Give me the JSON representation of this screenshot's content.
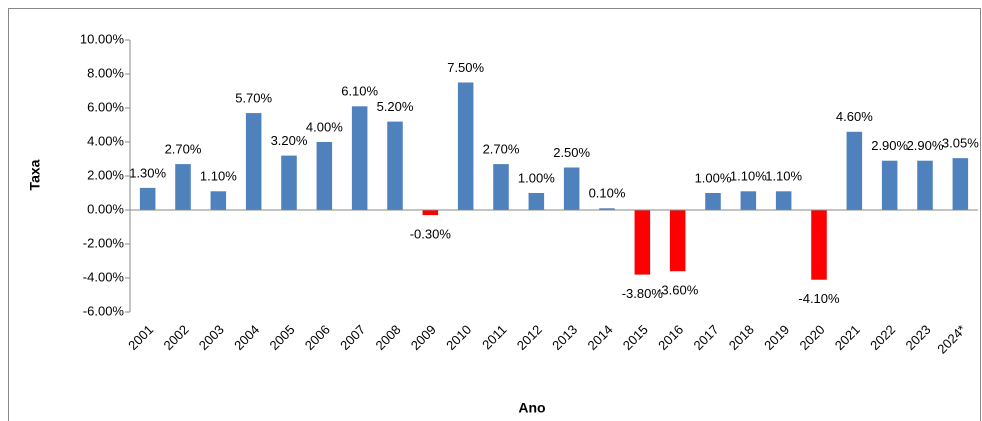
{
  "chart_data": {
    "type": "bar",
    "x_label": "Ano",
    "y_label": "Taxa",
    "categories": [
      "2001",
      "2002",
      "2003",
      "2004",
      "2005",
      "2006",
      "2007",
      "2008",
      "2009",
      "2010",
      "2011",
      "2012",
      "2013",
      "2014",
      "2015",
      "2016",
      "2017",
      "2018",
      "2019",
      "2020",
      "2021",
      "2022",
      "2023",
      "2024*"
    ],
    "values": [
      1.3,
      2.7,
      1.1,
      5.7,
      3.2,
      4.0,
      6.1,
      5.2,
      -0.3,
      7.5,
      2.7,
      1.0,
      2.5,
      0.1,
      -3.8,
      -3.6,
      1.0,
      1.1,
      1.1,
      -4.1,
      4.6,
      2.9,
      2.9,
      3.05
    ],
    "value_labels": [
      "1.30%",
      "2.70%",
      "1.10%",
      "5.70%",
      "3.20%",
      "4.00%",
      "6.10%",
      "5.20%",
      "-0.30%",
      "7.50%",
      "2.70%",
      "1.00%",
      "2.50%",
      "0.10%",
      "-3.80%",
      "-3.60%",
      "1.00%",
      "1.10%",
      "1.10%",
      "-4.10%",
      "4.60%",
      "2.90%",
      "2.90%",
      "3.05%"
    ],
    "colors": [
      "#4f81bd",
      "#4f81bd",
      "#4f81bd",
      "#4f81bd",
      "#4f81bd",
      "#4f81bd",
      "#4f81bd",
      "#4f81bd",
      "#ff0000",
      "#4f81bd",
      "#4f81bd",
      "#4f81bd",
      "#4f81bd",
      "#4f81bd",
      "#ff0000",
      "#ff0000",
      "#4f81bd",
      "#4f81bd",
      "#4f81bd",
      "#ff0000",
      "#4f81bd",
      "#4f81bd",
      "#4f81bd",
      "#4f81bd"
    ],
    "ylim": [
      -6,
      10
    ],
    "yticks": [
      {
        "value": -6,
        "label": "-6.00%"
      },
      {
        "value": -4,
        "label": "-4.00%"
      },
      {
        "value": -2,
        "label": "-2.00%"
      },
      {
        "value": 0,
        "label": "0.00%"
      },
      {
        "value": 2,
        "label": "2.00%"
      },
      {
        "value": 4,
        "label": "4.00%"
      },
      {
        "value": 6,
        "label": "6.00%"
      },
      {
        "value": 8,
        "label": "8.00%"
      },
      {
        "value": 10,
        "label": "10.00%"
      }
    ],
    "grid": false
  }
}
